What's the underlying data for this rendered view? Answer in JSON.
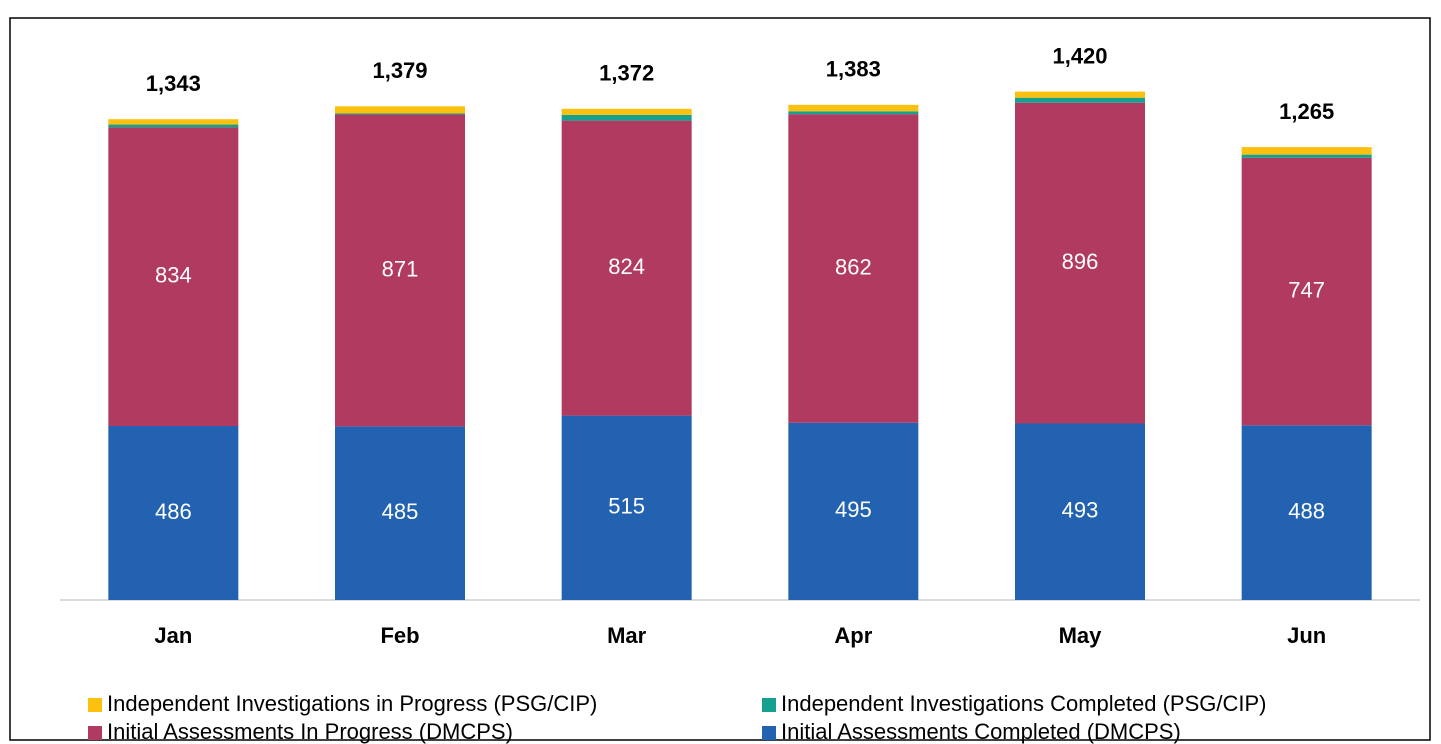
{
  "chart_data": {
    "type": "stacked_bar",
    "categories": [
      "Jan",
      "Feb",
      "Mar",
      "Apr",
      "May",
      "Jun"
    ],
    "series": [
      {
        "name": "Initial Assessments Completed (DMCPS)",
        "color": "#2262b0",
        "values": [
          486,
          485,
          515,
          495,
          493,
          488
        ],
        "show_labels": true
      },
      {
        "name": "Initial Assessments In Progress (DMCPS)",
        "color": "#b03a60",
        "values": [
          834,
          871,
          824,
          862,
          896,
          747
        ],
        "show_labels": true
      },
      {
        "name": "Independent Investigations Completed (PSG/CIP)",
        "color": "#16a08f",
        "values": [
          8,
          3,
          16,
          8,
          14,
          9
        ],
        "show_labels": false
      },
      {
        "name": "Independent Investigations in Progress (PSG/CIP)",
        "color": "#fcc10f",
        "values": [
          15,
          20,
          17,
          18,
          17,
          21
        ],
        "show_labels": false
      }
    ],
    "totals": [
      1343,
      1379,
      1372,
      1383,
      1420,
      1265
    ],
    "total_labels": [
      "1,343",
      "1,379",
      "1,372",
      "1,383",
      "1,420",
      "1,265"
    ],
    "ylim": [
      0,
      1620
    ]
  }
}
